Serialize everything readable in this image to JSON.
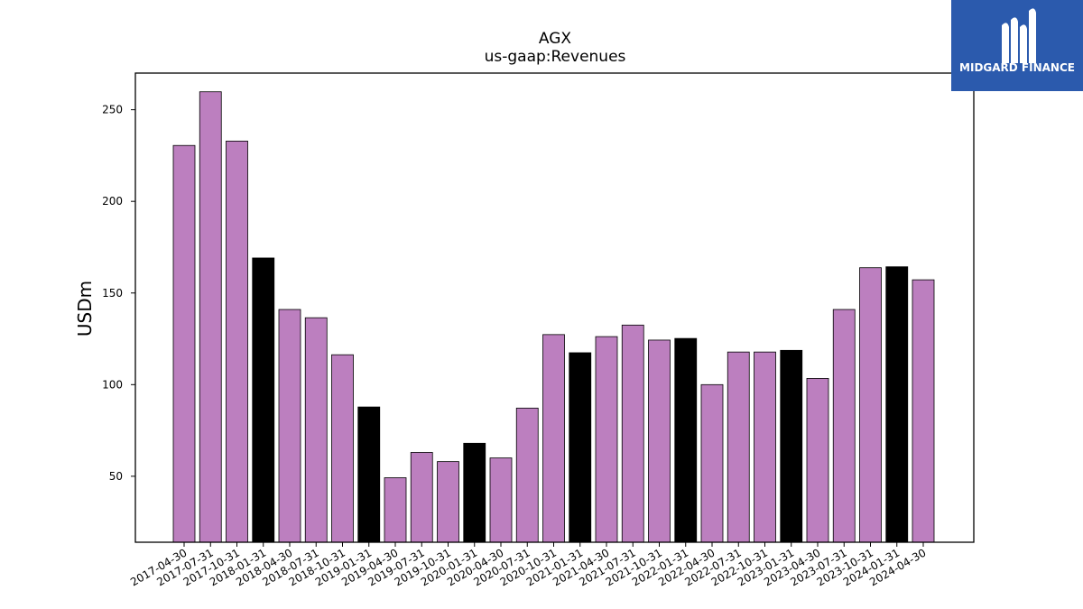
{
  "chart_data": {
    "type": "bar",
    "title": "AGX",
    "subtitle": "us-gaap:Revenues",
    "xlabel": "",
    "ylabel": "USDm",
    "ylim": [
      14,
      270
    ],
    "yticks": [
      50,
      100,
      150,
      200,
      250
    ],
    "grid": false,
    "categories": [
      "2017-04-30",
      "2017-07-31",
      "2017-10-31",
      "2018-01-31",
      "2018-04-30",
      "2018-07-31",
      "2018-10-31",
      "2019-01-31",
      "2019-04-30",
      "2019-07-31",
      "2019-10-31",
      "2020-01-31",
      "2020-04-30",
      "2020-07-31",
      "2020-10-31",
      "2021-01-31",
      "2021-04-30",
      "2021-07-31",
      "2021-10-31",
      "2022-01-31",
      "2022-04-30",
      "2022-07-31",
      "2022-10-31",
      "2023-01-31",
      "2023-04-30",
      "2023-07-31",
      "2023-10-31",
      "2024-01-31",
      "2024-04-30"
    ],
    "values": [
      230.5,
      259.8,
      232.9,
      169.1,
      141.0,
      136.5,
      116.3,
      87.8,
      49.2,
      63.0,
      58.0,
      68.0,
      60.0,
      87.2,
      127.3,
      117.4,
      126.2,
      132.5,
      124.3,
      125.2,
      100.0,
      117.8,
      117.8,
      118.7,
      103.4,
      141.0,
      163.8,
      164.3,
      157.2
    ],
    "fiscal_year_end": [
      false,
      false,
      false,
      true,
      false,
      false,
      false,
      true,
      false,
      false,
      false,
      true,
      false,
      false,
      false,
      true,
      false,
      false,
      false,
      true,
      false,
      false,
      false,
      true,
      false,
      false,
      false,
      true,
      false
    ],
    "colors": {
      "regular": "#bc7fbf",
      "highlight": "#000000",
      "edge": "#000000"
    }
  },
  "logo": {
    "text": "MIDGARD FINANCE",
    "background": "#2b5aad"
  }
}
